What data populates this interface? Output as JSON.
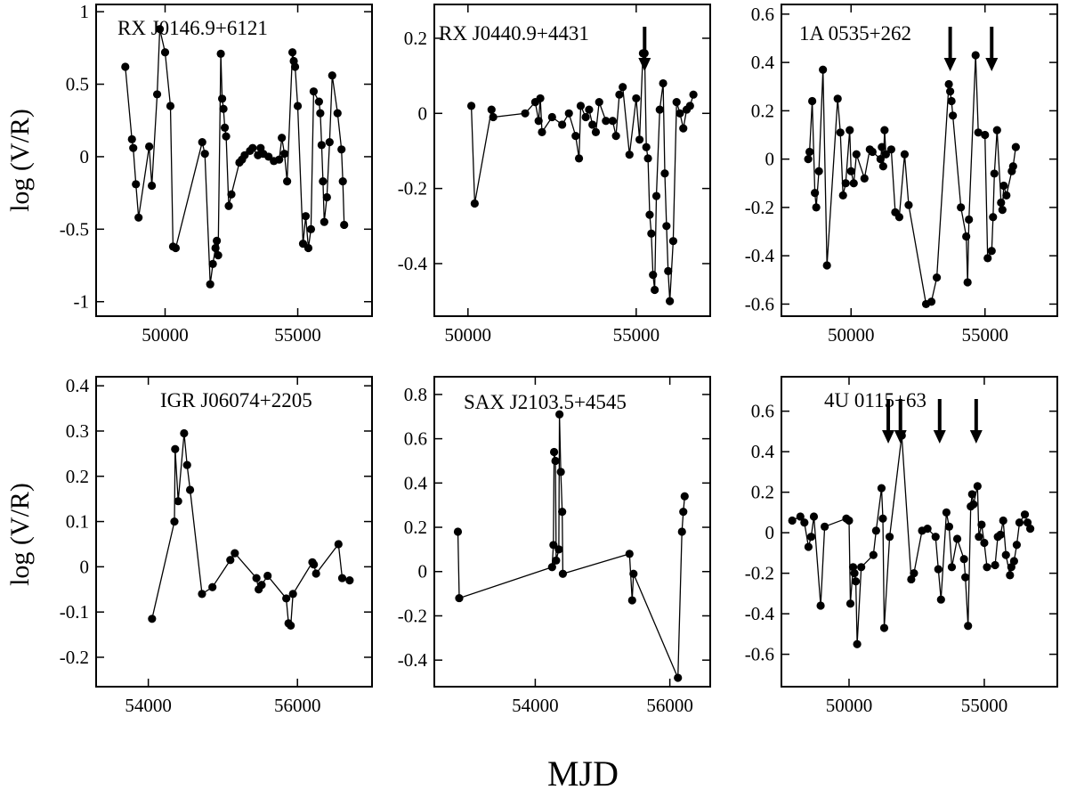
{
  "figure": {
    "xlabel": "MJD",
    "ylabel_top": "log (V/R)",
    "ylabel_bottom": "log (V/R)"
  },
  "chart_data": [
    {
      "type": "line",
      "title": "RX J0146.9+6121",
      "xlim": [
        47400,
        57800
      ],
      "ylim": [
        -1.1,
        1.05
      ],
      "xticks": [
        50000,
        55000
      ],
      "xtick_labels": [
        "50000",
        "55000"
      ],
      "yticks": [
        -1,
        -0.5,
        0,
        0.5,
        1
      ],
      "ytick_labels": [
        "-1",
        "-0.5",
        "0",
        "0.5",
        "1"
      ],
      "x": [
        48500,
        48750,
        48800,
        48900,
        49000,
        49400,
        49500,
        49700,
        49800,
        50000,
        50200,
        50300,
        50400,
        51400,
        51500,
        51700,
        51800,
        51900,
        51950,
        52000,
        52100,
        52150,
        52200,
        52250,
        52300,
        52400,
        52500,
        52800,
        52900,
        53000,
        53200,
        53300,
        53500,
        53600,
        53700,
        53900,
        54100,
        54300,
        54400,
        54500,
        54600,
        54800,
        54850,
        54900,
        55000,
        55200,
        55300,
        55400,
        55500,
        55600,
        55800,
        55850,
        55900,
        55950,
        56000,
        56100,
        56200,
        56300,
        56500,
        56650,
        56700,
        56750
      ],
      "y": [
        0.62,
        0.12,
        0.06,
        -0.19,
        -0.42,
        0.07,
        -0.2,
        0.43,
        0.88,
        0.72,
        0.35,
        -0.62,
        -0.63,
        0.1,
        0.02,
        -0.88,
        -0.74,
        -0.63,
        -0.58,
        -0.68,
        0.71,
        0.4,
        0.33,
        0.2,
        0.14,
        -0.34,
        -0.26,
        -0.04,
        -0.02,
        0.01,
        0.04,
        0.06,
        0.01,
        0.06,
        0.02,
        0.0,
        -0.03,
        -0.02,
        0.13,
        0.02,
        -0.17,
        0.72,
        0.66,
        0.62,
        0.35,
        -0.6,
        -0.41,
        -0.63,
        -0.5,
        0.45,
        0.38,
        0.3,
        0.08,
        -0.17,
        -0.45,
        -0.28,
        0.1,
        0.56,
        0.3,
        0.05,
        -0.17,
        -0.47
      ]
    },
    {
      "type": "line",
      "title": "RX J0440.9+4431",
      "xlim": [
        49000,
        57200
      ],
      "ylim": [
        -0.54,
        0.29
      ],
      "xticks": [
        50000,
        55000
      ],
      "xtick_labels": [
        "50000",
        "55000"
      ],
      "yticks": [
        -0.4,
        -0.2,
        0,
        0.2
      ],
      "ytick_labels": [
        "-0.4",
        "-0.2",
        "0",
        "0.2"
      ],
      "arrows_x": [
        55250
      ],
      "x": [
        50100,
        50200,
        50700,
        50750,
        51700,
        52000,
        52100,
        52150,
        52200,
        52500,
        52800,
        53000,
        53200,
        53300,
        53350,
        53500,
        53600,
        53700,
        53800,
        53900,
        54100,
        54300,
        54400,
        54500,
        54600,
        54800,
        55000,
        55100,
        55200,
        55250,
        55300,
        55350,
        55400,
        55450,
        55500,
        55550,
        55600,
        55700,
        55800,
        55850,
        55900,
        55950,
        56000,
        56100,
        56200,
        56300,
        56400,
        56500,
        56600,
        56700
      ],
      "y": [
        0.02,
        -0.24,
        0.01,
        -0.01,
        0.0,
        0.03,
        -0.02,
        0.04,
        -0.05,
        -0.01,
        -0.03,
        0.0,
        -0.06,
        -0.12,
        0.02,
        -0.01,
        0.01,
        -0.03,
        -0.05,
        0.03,
        -0.02,
        -0.02,
        -0.06,
        0.05,
        0.07,
        -0.11,
        0.04,
        -0.07,
        0.16,
        0.16,
        -0.09,
        -0.12,
        -0.27,
        -0.32,
        -0.43,
        -0.47,
        -0.22,
        0.01,
        0.08,
        -0.16,
        -0.3,
        -0.42,
        -0.5,
        -0.34,
        0.03,
        0.0,
        -0.04,
        0.01,
        0.02,
        0.05
      ]
    },
    {
      "type": "line",
      "title": "1A 0535+262",
      "xlim": [
        47400,
        57700
      ],
      "ylim": [
        -0.65,
        0.64
      ],
      "xticks": [
        50000,
        55000
      ],
      "xtick_labels": [
        "50000",
        "55000"
      ],
      "yticks": [
        -0.6,
        -0.4,
        -0.2,
        0,
        0.2,
        0.4,
        0.6
      ],
      "ytick_labels": [
        "-0.6",
        "-0.4",
        "-0.2",
        "0",
        "0.2",
        "0.4",
        "0.6"
      ],
      "arrows_x": [
        53700,
        55250
      ],
      "x": [
        48400,
        48450,
        48550,
        48650,
        48700,
        48800,
        48950,
        49100,
        49500,
        49600,
        49700,
        49800,
        49950,
        50000,
        50100,
        50200,
        50500,
        50700,
        50800,
        51100,
        51150,
        51200,
        51250,
        51300,
        51500,
        51650,
        51800,
        52000,
        52150,
        52800,
        53000,
        53200,
        53650,
        53700,
        53750,
        53800,
        54100,
        54300,
        54350,
        54400,
        54650,
        54750,
        55000,
        55100,
        55250,
        55300,
        55350,
        55450,
        55600,
        55650,
        55700,
        55800,
        56000,
        56050,
        56150
      ],
      "y": [
        0.0,
        0.03,
        0.24,
        -0.14,
        -0.2,
        -0.05,
        0.37,
        -0.44,
        0.25,
        0.11,
        -0.15,
        -0.1,
        0.12,
        -0.05,
        -0.1,
        0.02,
        -0.08,
        0.04,
        0.03,
        0.0,
        0.05,
        -0.03,
        0.12,
        0.02,
        0.04,
        -0.22,
        -0.24,
        0.02,
        -0.19,
        -0.6,
        -0.59,
        -0.49,
        0.31,
        0.28,
        0.24,
        0.18,
        -0.2,
        -0.32,
        -0.51,
        -0.25,
        0.43,
        0.11,
        0.1,
        -0.41,
        -0.38,
        -0.24,
        -0.06,
        0.12,
        -0.18,
        -0.21,
        -0.11,
        -0.15,
        -0.05,
        -0.03,
        0.05
      ]
    },
    {
      "type": "line",
      "title": "IGR J06074+2205",
      "xlim": [
        53300,
        57000
      ],
      "ylim": [
        -0.265,
        0.42
      ],
      "xticks": [
        54000,
        56000
      ],
      "xtick_labels": [
        "54000",
        "56000"
      ],
      "yticks": [
        -0.2,
        -0.1,
        0,
        0.1,
        0.2,
        0.3,
        0.4
      ],
      "ytick_labels": [
        "-0.2",
        "-0.1",
        "0",
        "0.1",
        "0.2",
        "0.3",
        "0.4"
      ],
      "x": [
        54050,
        54350,
        54360,
        54400,
        54480,
        54520,
        54560,
        54720,
        54860,
        55100,
        55160,
        55450,
        55480,
        55520,
        55600,
        55850,
        55880,
        55910,
        55940,
        56200,
        56220,
        56250,
        56550,
        56600,
        56700
      ],
      "y": [
        -0.115,
        0.1,
        0.26,
        0.145,
        0.295,
        0.225,
        0.17,
        -0.06,
        -0.045,
        0.015,
        0.03,
        -0.025,
        -0.05,
        -0.04,
        -0.02,
        -0.07,
        -0.125,
        -0.13,
        -0.06,
        0.01,
        0.005,
        -0.015,
        0.05,
        -0.025,
        -0.03
      ]
    },
    {
      "type": "line",
      "title": "SAX J2103.5+4545",
      "xlim": [
        52500,
        56600
      ],
      "ylim": [
        -0.52,
        0.88
      ],
      "xticks": [
        54000,
        56000
      ],
      "xtick_labels": [
        "54000",
        "56000"
      ],
      "yticks": [
        -0.4,
        -0.2,
        0,
        0.2,
        0.4,
        0.6,
        0.8
      ],
      "ytick_labels": [
        "-0.4",
        "-0.2",
        "0",
        "0.2",
        "0.4",
        "0.6",
        "0.8"
      ],
      "x": [
        52850,
        52870,
        54250,
        54270,
        54280,
        54300,
        54310,
        54350,
        54360,
        54380,
        54400,
        54410,
        55400,
        55440,
        55460,
        56120,
        56180,
        56200,
        56220
      ],
      "y": [
        0.18,
        -0.12,
        0.02,
        0.12,
        0.54,
        0.5,
        0.05,
        0.1,
        0.71,
        0.45,
        0.27,
        -0.01,
        0.08,
        -0.13,
        -0.01,
        -0.48,
        0.18,
        0.27,
        0.34
      ]
    },
    {
      "type": "line",
      "title": "4U 0115+63",
      "xlim": [
        47500,
        57700
      ],
      "ylim": [
        -0.76,
        0.77
      ],
      "xticks": [
        50000,
        55000
      ],
      "xtick_labels": [
        "50000",
        "55000"
      ],
      "yticks": [
        -0.6,
        -0.4,
        -0.2,
        0,
        0.2,
        0.4,
        0.6
      ],
      "ytick_labels": [
        "-0.6",
        "-0.4",
        "-0.2",
        "0",
        "0.2",
        "0.4",
        "0.6"
      ],
      "arrows_x": [
        51450,
        51900,
        53350,
        54700
      ],
      "x": [
        47900,
        48200,
        48350,
        48500,
        48600,
        48700,
        48950,
        49100,
        49900,
        50000,
        50050,
        50150,
        50200,
        50250,
        50300,
        50450,
        50900,
        51000,
        51200,
        51250,
        51300,
        51500,
        51950,
        52300,
        52400,
        52700,
        52900,
        53200,
        53300,
        53400,
        53600,
        53700,
        53800,
        54000,
        54250,
        54300,
        54400,
        54500,
        54550,
        54600,
        54750,
        54800,
        54900,
        55000,
        55100,
        55400,
        55500,
        55600,
        55700,
        55800,
        55950,
        56000,
        56100,
        56200,
        56300,
        56500,
        56600,
        56700
      ],
      "y": [
        0.06,
        0.08,
        0.05,
        -0.07,
        -0.02,
        0.08,
        -0.36,
        0.03,
        0.07,
        0.06,
        -0.35,
        -0.17,
        -0.2,
        -0.24,
        -0.55,
        -0.17,
        -0.11,
        0.01,
        0.22,
        0.07,
        -0.47,
        -0.02,
        0.48,
        -0.23,
        -0.2,
        0.01,
        0.02,
        -0.02,
        -0.18,
        -0.33,
        0.1,
        0.03,
        -0.17,
        -0.03,
        -0.13,
        -0.22,
        -0.46,
        0.13,
        0.19,
        0.14,
        0.23,
        -0.02,
        0.04,
        -0.05,
        -0.17,
        -0.16,
        -0.02,
        -0.01,
        0.06,
        -0.11,
        -0.21,
        -0.17,
        -0.14,
        -0.06,
        0.05,
        0.09,
        0.05,
        0.02
      ]
    }
  ]
}
